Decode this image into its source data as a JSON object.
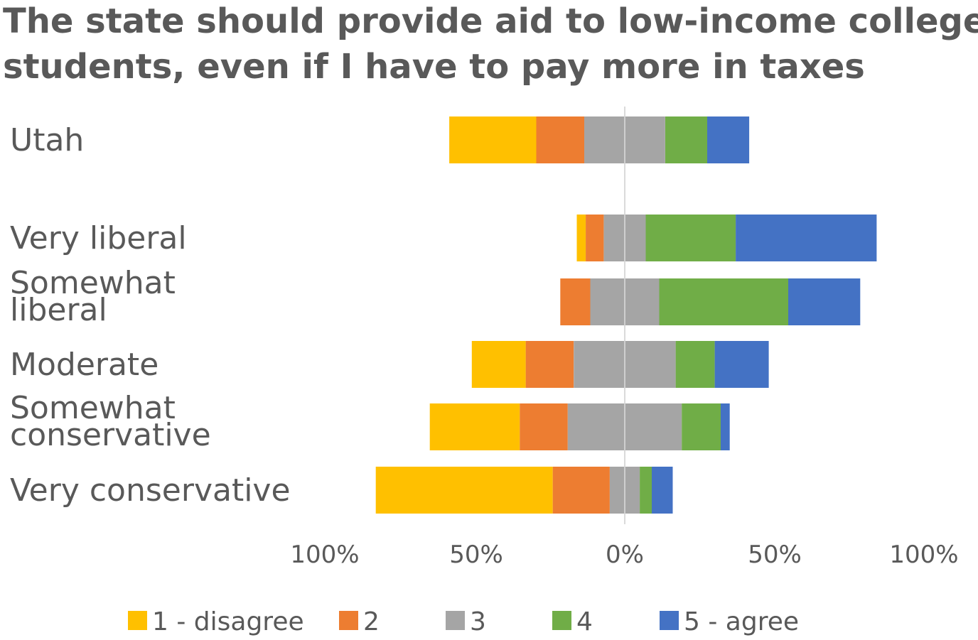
{
  "chart_data": {
    "type": "bar",
    "orientation": "horizontal",
    "layout": "diverging-stacked",
    "title_lines": [
      "The state should provide aid to low-income college",
      "students, even if I have to pay more in taxes"
    ],
    "categories": [
      [
        "Utah"
      ],
      [
        "Very liberal"
      ],
      [
        "Somewhat",
        "liberal"
      ],
      [
        "Moderate"
      ],
      [
        "Somewhat",
        "conservative"
      ],
      [
        "Very conservative"
      ]
    ],
    "series": [
      {
        "name": "1 - disagree",
        "color": "#FFC000",
        "values": [
          29,
          3,
          0,
          18,
          30,
          59
        ]
      },
      {
        "name": "2",
        "color": "#ED7D31",
        "values": [
          16,
          6,
          10,
          16,
          16,
          19
        ]
      },
      {
        "name": "3",
        "color": "#A5A5A5",
        "values": [
          27,
          14,
          23,
          34,
          38,
          10
        ]
      },
      {
        "name": "4",
        "color": "#70AD47",
        "values": [
          14,
          30,
          43,
          13,
          13,
          4
        ]
      },
      {
        "name": "5 - agree",
        "color": "#4472C4",
        "values": [
          14,
          47,
          24,
          18,
          3,
          7
        ]
      }
    ],
    "x_ticks": [
      "100%",
      "50%",
      "0%",
      "50%",
      "100%"
    ],
    "xlim": [
      -100,
      100
    ],
    "neutral_series": "3",
    "grid": false,
    "legend_position": "bottom"
  }
}
